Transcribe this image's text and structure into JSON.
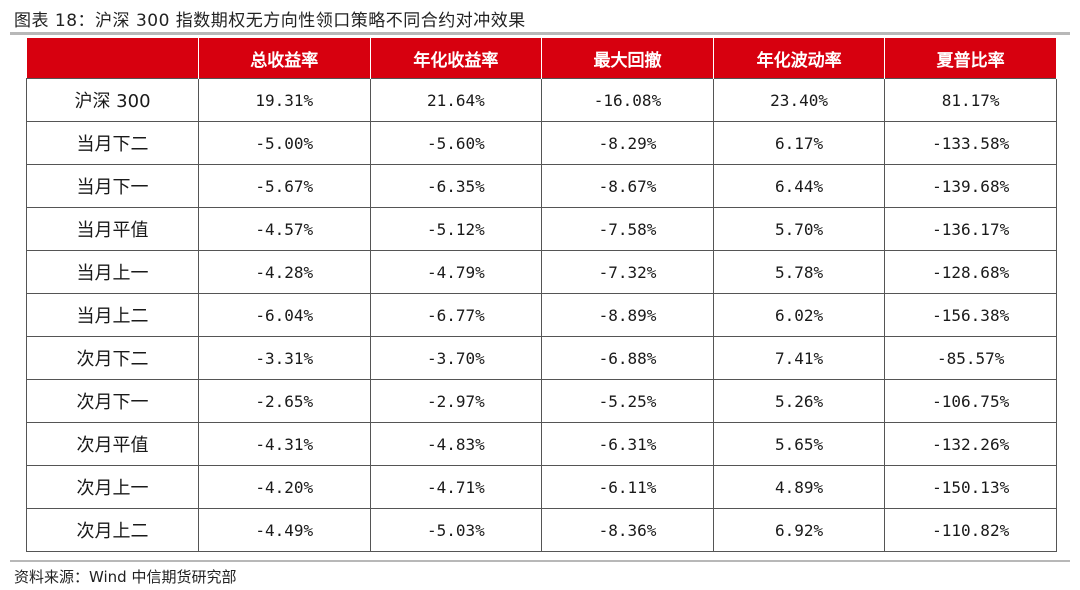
{
  "title": "图表 18：沪深 300 指数期权无方向性领口策略不同合约对冲效果",
  "table": {
    "headers": [
      "",
      "总收益率",
      "年化收益率",
      "最大回撤",
      "年化波动率",
      "夏普比率"
    ],
    "rows": [
      [
        "沪深 300",
        "19.31%",
        "21.64%",
        "-16.08%",
        "23.40%",
        "81.17%"
      ],
      [
        "当月下二",
        "-5.00%",
        "-5.60%",
        "-8.29%",
        "6.17%",
        "-133.58%"
      ],
      [
        "当月下一",
        "-5.67%",
        "-6.35%",
        "-8.67%",
        "6.44%",
        "-139.68%"
      ],
      [
        "当月平值",
        "-4.57%",
        "-5.12%",
        "-7.58%",
        "5.70%",
        "-136.17%"
      ],
      [
        "当月上一",
        "-4.28%",
        "-4.79%",
        "-7.32%",
        "5.78%",
        "-128.68%"
      ],
      [
        "当月上二",
        "-6.04%",
        "-6.77%",
        "-8.89%",
        "6.02%",
        "-156.38%"
      ],
      [
        "次月下二",
        "-3.31%",
        "-3.70%",
        "-6.88%",
        "7.41%",
        "-85.57%"
      ],
      [
        "次月下一",
        "-2.65%",
        "-2.97%",
        "-5.25%",
        "5.26%",
        "-106.75%"
      ],
      [
        "次月平值",
        "-4.31%",
        "-4.83%",
        "-6.31%",
        "5.65%",
        "-132.26%"
      ],
      [
        "次月上一",
        "-4.20%",
        "-4.71%",
        "-6.11%",
        "4.89%",
        "-150.13%"
      ],
      [
        "次月上二",
        "-4.49%",
        "-5.03%",
        "-8.36%",
        "6.92%",
        "-110.82%"
      ]
    ]
  },
  "source": "资料来源：Wind 中信期货研究部",
  "colors": {
    "header_bg": "#d7000f",
    "header_text": "#ffffff",
    "rule": "#b8b8b8"
  }
}
